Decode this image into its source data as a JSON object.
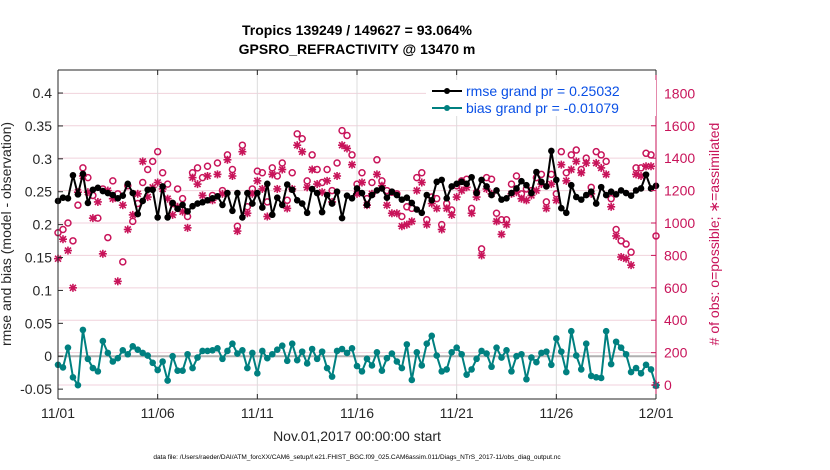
{
  "chart_data": {
    "type": "line",
    "title": [
      "Tropics 139249 / 149627 = 93.064%",
      "GPSRO_REFRACTIVITY @ 13470 m"
    ],
    "xlabel": "Nov.01,2017 00:00:00 start",
    "ylabel_left": "rmse and bias (model - observation)",
    "ylabel_right": "# of obs: o=possible; ∗=assimilated",
    "xlim_days": [
      0,
      30
    ],
    "ylim_left": [
      -0.065,
      0.435
    ],
    "ylim_right": [
      -86,
      1944
    ],
    "x_ticks": [
      {
        "day": 0,
        "label": "11/01"
      },
      {
        "day": 5,
        "label": "11/06"
      },
      {
        "day": 10,
        "label": "11/11"
      },
      {
        "day": 15,
        "label": "11/16"
      },
      {
        "day": 20,
        "label": "11/21"
      },
      {
        "day": 25,
        "label": "11/26"
      },
      {
        "day": 30,
        "label": "12/01"
      }
    ],
    "y_ticks_left": [
      "-0.05",
      "0",
      "0.05",
      "0.1",
      "0.15",
      "0.2",
      "0.25",
      "0.3",
      "0.35",
      "0.4"
    ],
    "y_ticks_left_values": [
      -0.05,
      0,
      0.05,
      0.1,
      0.15,
      0.2,
      0.25,
      0.3,
      0.35,
      0.4
    ],
    "y_ticks_right": [
      "0",
      "200",
      "400",
      "600",
      "800",
      "1000",
      "1200",
      "1400",
      "1600",
      "1800"
    ],
    "y_ticks_right_values": [
      0,
      200,
      400,
      600,
      800,
      1000,
      1200,
      1400,
      1600,
      1800
    ],
    "grid": true,
    "legend_position": "top-right",
    "step_days": 0.25,
    "series": [
      {
        "name": "rmse grand pr = 0.25032",
        "color": "#000000",
        "axis": "left",
        "values": [
          0.236,
          0.241,
          0.24,
          0.275,
          0.246,
          0.277,
          0.233,
          0.253,
          0.256,
          0.251,
          0.248,
          0.245,
          0.24,
          0.244,
          0.262,
          0.248,
          0.216,
          0.236,
          0.253,
          0.253,
          0.211,
          0.258,
          0.211,
          0.233,
          0.224,
          0.23,
          0.22,
          0.228,
          0.232,
          0.234,
          0.237,
          0.24,
          0.243,
          0.23,
          0.248,
          0.221,
          0.248,
          0.211,
          0.248,
          0.232,
          0.248,
          0.226,
          0.262,
          0.215,
          0.241,
          0.23,
          0.261,
          0.253,
          0.237,
          0.232,
          0.218,
          0.254,
          0.248,
          0.219,
          0.245,
          0.232,
          0.25,
          0.21,
          0.244,
          0.24,
          0.255,
          0.248,
          0.23,
          0.245,
          0.252,
          0.255,
          0.241,
          0.25,
          0.245,
          0.238,
          0.241,
          0.233,
          0.223,
          0.218,
          0.245,
          0.237,
          0.265,
          0.268,
          0.24,
          0.258,
          0.262,
          0.265,
          0.262,
          0.272,
          0.248,
          0.268,
          0.258,
          0.245,
          0.252,
          0.238,
          0.24,
          0.248,
          0.255,
          0.266,
          0.26,
          0.248,
          0.28,
          0.265,
          0.258,
          0.312,
          0.268,
          0.225,
          0.218,
          0.26,
          0.242,
          0.238,
          0.245,
          0.25,
          0.232,
          0.257,
          0.245,
          0.25,
          0.246,
          0.252,
          0.248,
          0.244,
          0.252,
          0.255,
          0.276,
          0.255,
          0.259
        ]
      },
      {
        "name": "bias grand pr = -0.01079",
        "color": "#008080",
        "axis": "left",
        "values": [
          -0.013,
          -0.017,
          0.013,
          -0.032,
          -0.044,
          0.04,
          -0.004,
          -0.018,
          -0.023,
          0.023,
          0.005,
          -0.008,
          -0.003,
          0.009,
          0.003,
          0.015,
          0.01,
          0.005,
          0.001,
          -0.01,
          -0.021,
          -0.008,
          -0.037,
          0.0,
          -0.022,
          -0.022,
          0.003,
          -0.018,
          -0.002,
          0.008,
          0.008,
          0.009,
          0.012,
          -0.004,
          0.008,
          0.019,
          0.004,
          0.009,
          -0.018,
          0.005,
          -0.026,
          0.008,
          -0.003,
          0.003,
          0.01,
          0.016,
          -0.007,
          0.019,
          -0.006,
          0.007,
          -0.011,
          0.011,
          -0.004,
          0.007,
          -0.018,
          -0.031,
          0.008,
          0.011,
          0.005,
          0.012,
          -0.015,
          -0.023,
          -0.004,
          -0.014,
          0.006,
          -0.022,
          -0.003,
          0.004,
          -0.008,
          -0.018,
          0.018,
          -0.036,
          0.006,
          -0.014,
          0.019,
          0.031,
          0.001,
          -0.023,
          -0.02,
          0.006,
          0.013,
          0.003,
          -0.028,
          -0.02,
          -0.004,
          0.008,
          0.004,
          -0.016,
          0.013,
          -0.002,
          0.009,
          -0.023,
          0.0,
          0.003,
          -0.035,
          -0.002,
          -0.009,
          0.005,
          0.007,
          -0.013,
          0.027,
          0.007,
          -0.024,
          0.038,
          0.001,
          -0.02,
          0.019,
          -0.03,
          -0.032,
          -0.033,
          0.038,
          -0.012,
          0.022,
          0.013,
          0.003,
          -0.024,
          -0.018,
          -0.026,
          -0.013,
          -0.02,
          -0.045
        ]
      },
      {
        "name": "possible obs (o)",
        "color": "#c8145a",
        "marker": "o",
        "axis": "right",
        "values": [
          940,
          960,
          1000,
          890,
          1110,
          1340,
          1280,
          1170,
          1030,
          1210,
          910,
          1260,
          1180,
          760,
          1230,
          1010,
          1120,
          1250,
          1330,
          1380,
          1440,
          1310,
          1240,
          1120,
          1210,
          1150,
          1040,
          1310,
          1340,
          1280,
          1350,
          1170,
          1370,
          1200,
          1420,
          1330,
          980,
          1480,
          1100,
          1210,
          1320,
          1310,
          1130,
          1340,
          1290,
          1370,
          1140,
          1310,
          1550,
          1520,
          1260,
          1420,
          1330,
          1250,
          1330,
          1200,
          1370,
          1570,
          1540,
          1420,
          1240,
          1310,
          1150,
          1250,
          1390,
          1260,
          1200,
          1190,
          1180,
          1040,
          1100,
          1090,
          1280,
          1310,
          1020,
          1160,
          1150,
          990,
          1120,
          1080,
          1230,
          1260,
          1270,
          1090,
          1190,
          840,
          1280,
          1270,
          1060,
          1020,
          1020,
          1240,
          1290,
          1180,
          1210,
          1200,
          1280,
          1300,
          1130,
          1300,
          1180,
          1440,
          1310,
          1420,
          1450,
          1330,
          1400,
          1220,
          1440,
          1420,
          1380,
          1150,
          960,
          890,
          870,
          820,
          1340,
          1340,
          1430,
          1420,
          920
        ]
      },
      {
        "name": "assimilated obs (∗)",
        "color": "#c8145a",
        "marker": "*",
        "axis": "right",
        "values": [
          780,
          900,
          830,
          600,
          1190,
          1290,
          1190,
          1030,
          1130,
          810,
          1200,
          1150,
          640,
          1110,
          960,
          1050,
          1180,
          1380,
          1160,
          1220,
          1250,
          1210,
          1150,
          1050,
          1100,
          1070,
          970,
          1280,
          1240,
          1170,
          1290,
          1140,
          1300,
          1180,
          1390,
          1290,
          950,
          1440,
          1060,
          1180,
          1260,
          1210,
          1040,
          1300,
          1210,
          1330,
          1090,
          1210,
          1480,
          1440,
          1220,
          1330,
          1240,
          1190,
          1260,
          1130,
          1290,
          1480,
          1460,
          1360,
          1180,
          1250,
          1110,
          1180,
          1300,
          1230,
          1110,
          1060,
          1060,
          980,
          990,
          1010,
          1200,
          1250,
          990,
          1120,
          1090,
          960,
          1090,
          1050,
          1160,
          1200,
          1220,
          1060,
          1160,
          800,
          1210,
          1180,
          1010,
          930,
          990,
          1180,
          1190,
          1150,
          1140,
          1170,
          1200,
          1240,
          1090,
          1240,
          1140,
          1360,
          1260,
          1330,
          1380,
          1310,
          1370,
          1180,
          1370,
          1340,
          1300,
          1100,
          920,
          790,
          780,
          740,
          1300,
          1290,
          1350,
          1350,
          0
        ]
      }
    ],
    "zero_line": {
      "value": 0,
      "color": "#b0b0b0"
    }
  },
  "footer": "data file: /Users/raeder/DAI/ATM_forcXX/CAM6_setup/f.e21.FHIST_BGC.f09_025.CAM6assim.011/Diags_NTrS_2017-11/obs_diag_output.nc"
}
